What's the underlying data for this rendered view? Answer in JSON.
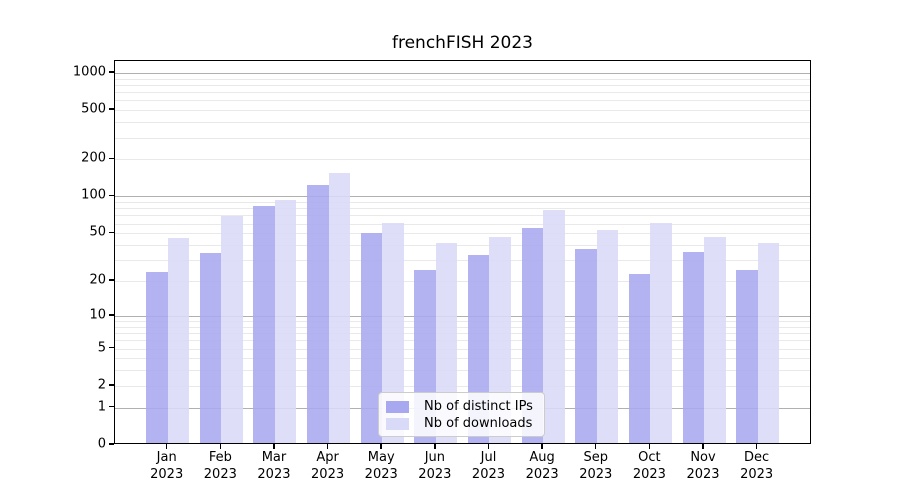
{
  "chart_data": {
    "type": "bar",
    "title": "frenchFISH 2023",
    "xlabel": "",
    "ylabel": "",
    "yscale": "log1p",
    "grid": "horizontal",
    "legend_position": "lower center",
    "yticks": [
      0,
      1,
      2,
      5,
      10,
      20,
      50,
      100,
      200,
      500,
      1000
    ],
    "ylim": [
      0,
      1200
    ],
    "x_months": [
      "Jan",
      "Feb",
      "Mar",
      "Apr",
      "May",
      "Jun",
      "Jul",
      "Aug",
      "Sep",
      "Oct",
      "Nov",
      "Dec"
    ],
    "x_year": "2023",
    "categories": [
      "Jan 2023",
      "Feb 2023",
      "Mar 2023",
      "Apr 2023",
      "May 2023",
      "Jun 2023",
      "Jul 2023",
      "Aug 2023",
      "Sep 2023",
      "Oct 2023",
      "Nov 2023",
      "Dec 2023"
    ],
    "series": [
      {
        "name": "Nb of distinct IPs",
        "color": "#a8a8f0",
        "values": [
          23,
          33,
          80,
          120,
          48,
          24,
          32,
          53,
          36,
          22,
          34,
          24
        ]
      },
      {
        "name": "Nb of downloads",
        "color": "#d9d9f8",
        "values": [
          44,
          67,
          90,
          150,
          58,
          40,
          45,
          75,
          51,
          59,
          45,
          40
        ]
      }
    ],
    "colors": {
      "major_grid": "#b0b0b0",
      "minor_grid": "#e9e9e9",
      "spine": "#000000",
      "background": "#ffffff"
    }
  }
}
